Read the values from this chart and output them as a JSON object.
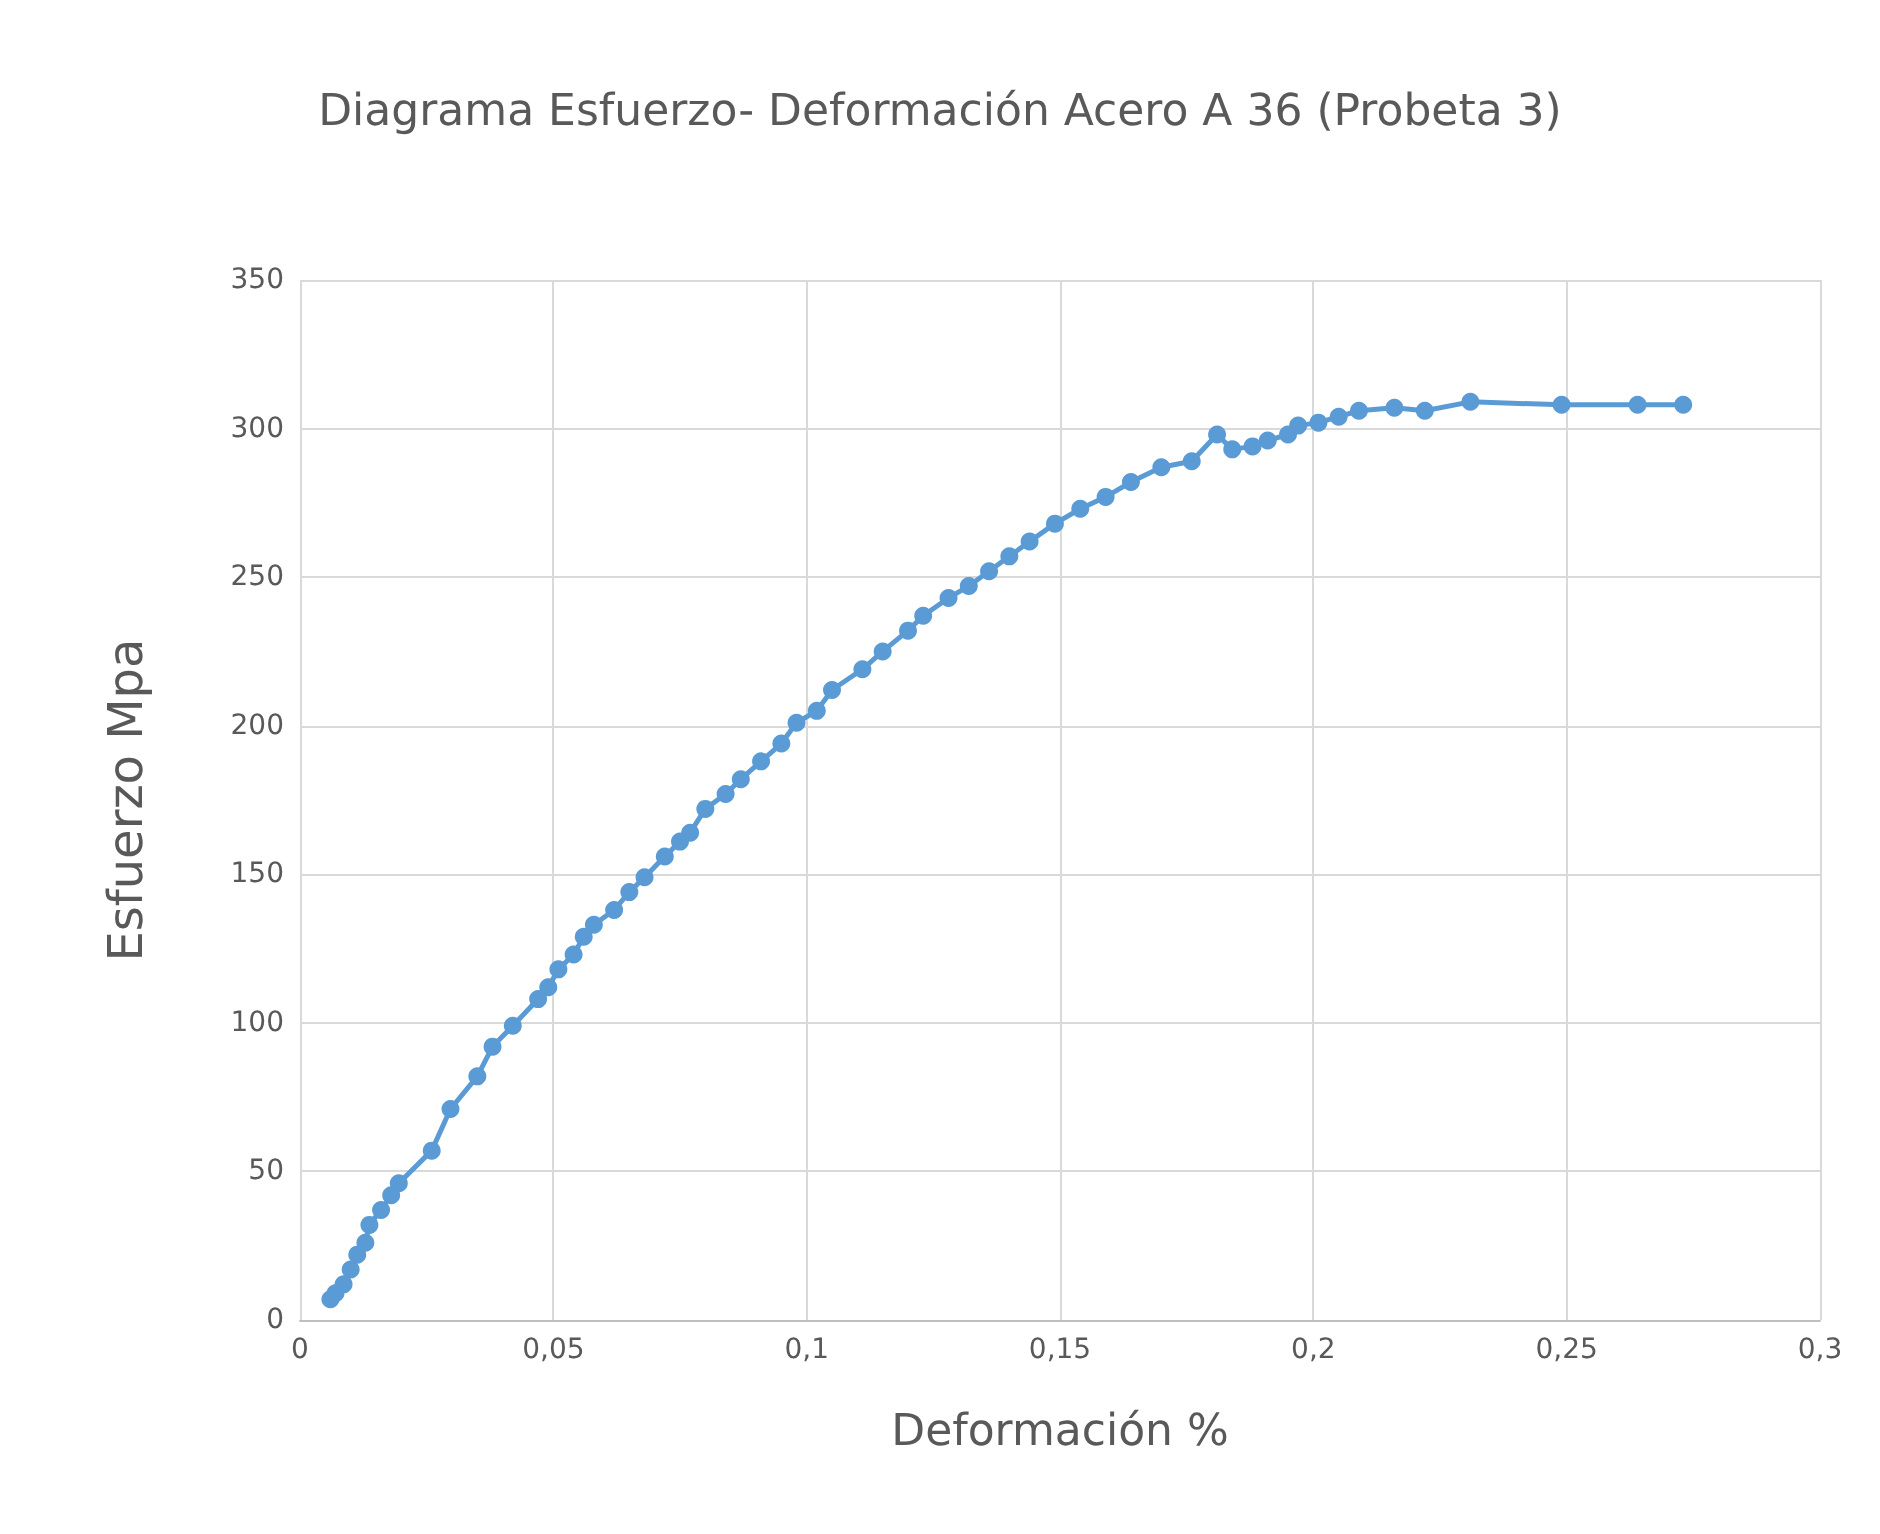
{
  "chart_data": {
    "type": "line",
    "title": "Diagrama Esfuerzo- Deformación Acero A 36 (Probeta 3)",
    "xlabel": "Deformación %",
    "ylabel": "Esfuerzo Mpa",
    "x": [
      0.006,
      0.007,
      0.0086,
      0.01,
      0.0113,
      0.0129,
      0.0137,
      0.016,
      0.018,
      0.0195,
      0.026,
      0.0297,
      0.035,
      0.038,
      0.042,
      0.047,
      0.049,
      0.051,
      0.054,
      0.056,
      0.058,
      0.062,
      0.065,
      0.068,
      0.072,
      0.075,
      0.077,
      0.08,
      0.084,
      0.087,
      0.091,
      0.095,
      0.098,
      0.102,
      0.105,
      0.111,
      0.115,
      0.12,
      0.123,
      0.128,
      0.132,
      0.136,
      0.14,
      0.144,
      0.149,
      0.154,
      0.159,
      0.164,
      0.17,
      0.176,
      0.181,
      0.184,
      0.188,
      0.191,
      0.195,
      0.197,
      0.201,
      0.205,
      0.209,
      0.216,
      0.222,
      0.231,
      0.249,
      0.264,
      0.273
    ],
    "series": [
      {
        "color": "#5b9bd5",
        "values": [
          7,
          9,
          12,
          17,
          22,
          26,
          32,
          37,
          42,
          46,
          57,
          71,
          82,
          92,
          99,
          108,
          112,
          118,
          123,
          129,
          133,
          138,
          144,
          149,
          156,
          161,
          164,
          172,
          177,
          182,
          188,
          194,
          201,
          205,
          212,
          219,
          225,
          232,
          237,
          243,
          247,
          252,
          257,
          262,
          268,
          273,
          277,
          282,
          287,
          289,
          298,
          293,
          294,
          296,
          298,
          301,
          302,
          304,
          306,
          307,
          306,
          309,
          308,
          308,
          308
        ]
      }
    ],
    "xlim": [
      0,
      0.3
    ],
    "xticks": [
      0,
      {
        "value": 0.05,
        "label": "0,05"
      },
      {
        "value": 0.1,
        "label": "0,1"
      },
      {
        "value": 0.15,
        "label": "0,15"
      },
      {
        "value": 0.2,
        "label": "0,2"
      },
      {
        "value": 0.25,
        "label": "0,25"
      },
      {
        "value": 0.3,
        "label": "0,3"
      }
    ],
    "ylim": [
      0,
      350
    ],
    "yticks": [
      0,
      50,
      100,
      150,
      200,
      250,
      300,
      350
    ],
    "grid": true,
    "marker": "circle",
    "line_style": "solid"
  }
}
